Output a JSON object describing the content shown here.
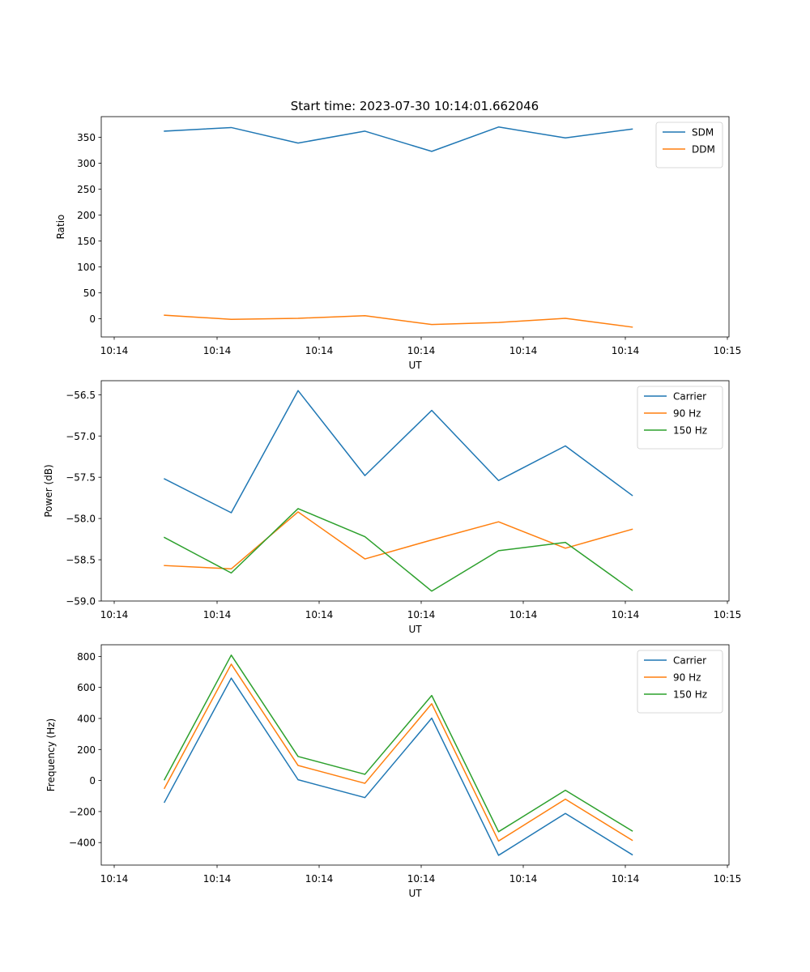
{
  "figure": {
    "title": "Start time: 2023-07-30 10:14:01.662046"
  },
  "chart_data": [
    {
      "type": "line",
      "title": "Start time: 2023-07-30 10:14:01.662046",
      "xlabel": "UT",
      "ylabel": "Ratio",
      "x_ticks": [
        "10:14",
        "10:14",
        "10:14",
        "10:14",
        "10:14",
        "10:14",
        "10:14"
      ],
      "x_ticks_end": "10:15",
      "ylim": [
        -35,
        390
      ],
      "y_ticks": [
        0,
        50,
        100,
        150,
        200,
        250,
        300,
        350
      ],
      "legend_position": "top-right",
      "series": [
        {
          "name": "SDM",
          "color": "#1f77b4",
          "values": [
            362,
            369,
            339,
            362,
            323,
            370,
            349,
            366
          ]
        },
        {
          "name": "DDM",
          "color": "#ff7f0e",
          "values": [
            7,
            -1,
            1,
            6,
            -11,
            -7,
            1,
            -16
          ]
        }
      ]
    },
    {
      "type": "line",
      "title": "",
      "xlabel": "UT",
      "ylabel": "Power (dB)",
      "x_ticks": [
        "10:14",
        "10:14",
        "10:14",
        "10:14",
        "10:14",
        "10:14",
        "10:14"
      ],
      "x_ticks_end": "10:15",
      "ylim": [
        -59.0,
        -56.33
      ],
      "y_ticks": [
        -59.0,
        -58.5,
        -58.0,
        -57.5,
        -57.0,
        -56.5
      ],
      "y_tick_labels": [
        "−59.0",
        "−58.5",
        "−58.0",
        "−57.5",
        "−57.0",
        "−56.5"
      ],
      "legend_position": "top-right",
      "series": [
        {
          "name": "Carrier",
          "color": "#1f77b4",
          "values": [
            -57.52,
            -57.93,
            -56.45,
            -57.48,
            -56.69,
            -57.54,
            -57.12,
            -57.72
          ]
        },
        {
          "name": "90 Hz",
          "color": "#ff7f0e",
          "values": [
            -58.57,
            -58.61,
            -57.92,
            -58.49,
            -58.26,
            -58.04,
            -58.36,
            -58.13
          ]
        },
        {
          "name": "150 Hz",
          "color": "#2ca02c",
          "values": [
            -58.23,
            -58.66,
            -57.88,
            -58.22,
            -58.88,
            -58.39,
            -58.29,
            -58.87
          ]
        }
      ]
    },
    {
      "type": "line",
      "title": "",
      "xlabel": "UT",
      "ylabel": "Frequency (Hz)",
      "x_ticks": [
        "10:14",
        "10:14",
        "10:14",
        "10:14",
        "10:14",
        "10:14",
        "10:14"
      ],
      "x_ticks_end": "10:15",
      "ylim": [
        -545,
        875
      ],
      "y_ticks": [
        -400,
        -200,
        0,
        200,
        400,
        600,
        800
      ],
      "y_tick_labels": [
        "−400",
        "−200",
        "0",
        "200",
        "400",
        "600",
        "800"
      ],
      "legend_position": "top-right",
      "series": [
        {
          "name": "Carrier",
          "color": "#1f77b4",
          "values": [
            -140,
            660,
            5,
            -110,
            402,
            -482,
            -212,
            -478
          ]
        },
        {
          "name": "90 Hz",
          "color": "#ff7f0e",
          "values": [
            -50,
            750,
            97,
            -18,
            495,
            -390,
            -120,
            -385
          ]
        },
        {
          "name": "150 Hz",
          "color": "#2ca02c",
          "values": [
            5,
            808,
            155,
            40,
            548,
            -330,
            -63,
            -325
          ]
        }
      ]
    }
  ]
}
